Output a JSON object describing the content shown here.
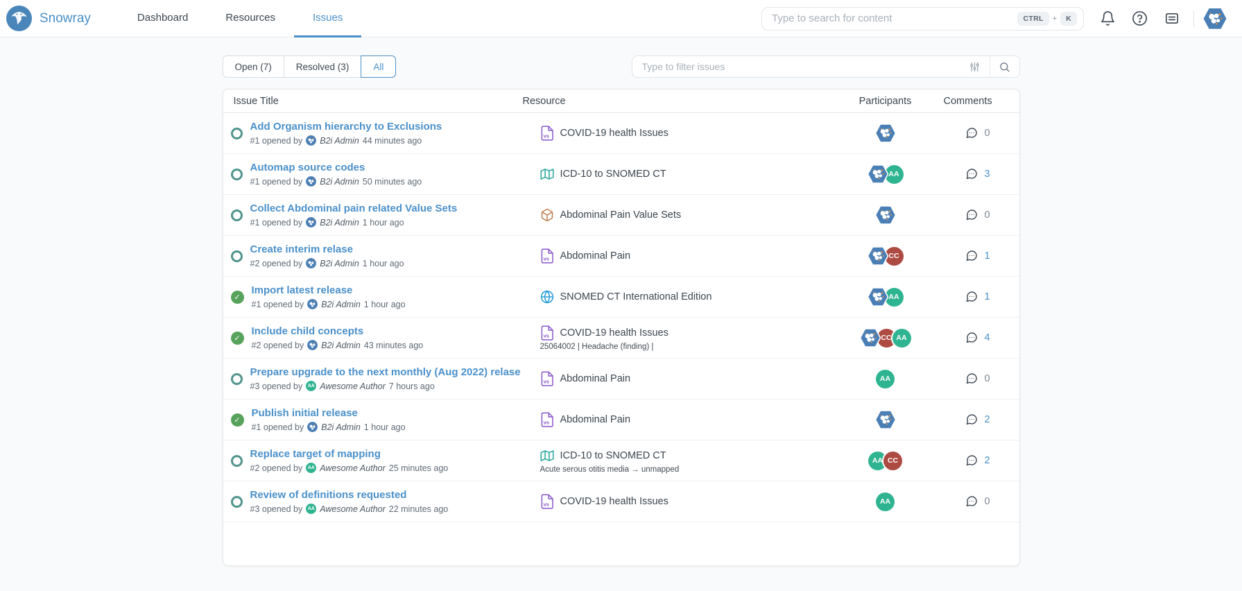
{
  "header": {
    "brand": "Snowray",
    "nav": [
      {
        "label": "Dashboard",
        "active": false
      },
      {
        "label": "Resources",
        "active": false
      },
      {
        "label": "Issues",
        "active": true
      }
    ],
    "search": {
      "placeholder": "Type to search for content",
      "shortcut": [
        "CTRL",
        "+",
        "K"
      ]
    },
    "icons": [
      "notifications-bell",
      "help",
      "whats-new",
      "user-avatar"
    ]
  },
  "toolbar": {
    "tabs": [
      {
        "label": "Open (7)",
        "active": false
      },
      {
        "label": "Resolved (3)",
        "active": false
      },
      {
        "label": "All",
        "active": true
      }
    ],
    "filter": {
      "placeholder": "Type to filter issues"
    }
  },
  "avatars": {
    "b2i": {
      "label": "B2i Admin",
      "color": "#4a7fb5",
      "shape": "hexagon-molecule"
    },
    "aa": {
      "initials": "AA",
      "label": "Awesome Author",
      "color": "#2fb491"
    },
    "cc": {
      "initials": "CC",
      "color": "#ad4a41"
    }
  },
  "table": {
    "columns": [
      "Issue Title",
      "Resource",
      "Participants",
      "Comments"
    ],
    "rows": [
      {
        "status": "open",
        "title": "Add Organism hierarchy to Exclusions",
        "meta_prefix": "#1 opened by",
        "author": "B2i Admin",
        "author_avatar": "b2i",
        "time": "44 minutes ago",
        "resource": {
          "icon": "value-set",
          "name": "COVID-19 health Issues",
          "subtitle": null
        },
        "participants": [
          "b2i"
        ],
        "comments": 0
      },
      {
        "status": "open",
        "title": "Automap source codes",
        "meta_prefix": "#1 opened by",
        "author": "B2i Admin",
        "author_avatar": "b2i",
        "time": "50 minutes ago",
        "resource": {
          "icon": "map",
          "name": "ICD-10 to SNOMED CT",
          "subtitle": null
        },
        "participants": [
          "b2i",
          "aa"
        ],
        "comments": 3
      },
      {
        "status": "open",
        "title": "Collect Abdominal pain related Value Sets",
        "meta_prefix": "#1 opened by",
        "author": "B2i Admin",
        "author_avatar": "b2i",
        "time": "1 hour ago",
        "resource": {
          "icon": "bundle",
          "name": "Abdominal Pain Value Sets",
          "subtitle": null
        },
        "participants": [
          "b2i"
        ],
        "comments": 0
      },
      {
        "status": "open",
        "title": "Create interim relase",
        "meta_prefix": "#2 opened by",
        "author": "B2i Admin",
        "author_avatar": "b2i",
        "time": "1 hour ago",
        "resource": {
          "icon": "value-set",
          "name": "Abdominal Pain",
          "subtitle": null
        },
        "participants": [
          "b2i",
          "cc"
        ],
        "comments": 1
      },
      {
        "status": "resolved",
        "title": "Import latest release",
        "meta_prefix": "#1 opened by",
        "author": "B2i Admin",
        "author_avatar": "b2i",
        "time": "1 hour ago",
        "resource": {
          "icon": "globe",
          "name": "SNOMED CT International Edition",
          "subtitle": null
        },
        "participants": [
          "b2i",
          "aa"
        ],
        "comments": 1
      },
      {
        "status": "resolved",
        "title": "Include child concepts",
        "meta_prefix": "#2 opened by",
        "author": "B2i Admin",
        "author_avatar": "b2i",
        "time": "43 minutes ago",
        "resource": {
          "icon": "value-set",
          "name": "COVID-19 health Issues",
          "subtitle": "25064002 | Headache (finding) |"
        },
        "participants": [
          "b2i",
          "cc",
          "aa"
        ],
        "comments": 4
      },
      {
        "status": "open",
        "title": "Prepare upgrade to the next monthly (Aug 2022) relase",
        "meta_prefix": "#3 opened by",
        "author": "Awesome Author",
        "author_avatar": "aa",
        "time": "7 hours ago",
        "resource": {
          "icon": "value-set",
          "name": "Abdominal Pain",
          "subtitle": null
        },
        "participants": [
          "aa"
        ],
        "comments": 0
      },
      {
        "status": "resolved",
        "title": "Publish initial release",
        "meta_prefix": "#1 opened by",
        "author": "B2i Admin",
        "author_avatar": "b2i",
        "time": "1 hour ago",
        "resource": {
          "icon": "value-set",
          "name": "Abdominal Pain",
          "subtitle": null
        },
        "participants": [
          "b2i"
        ],
        "comments": 2
      },
      {
        "status": "open",
        "title": "Replace target of mapping",
        "meta_prefix": "#2 opened by",
        "author": "Awesome Author",
        "author_avatar": "aa",
        "time": "25 minutes ago",
        "resource": {
          "icon": "map",
          "name": "ICD-10 to SNOMED CT",
          "subtitle": "Acute serous otitis media → unmapped"
        },
        "participants": [
          "aa",
          "cc"
        ],
        "comments": 2
      },
      {
        "status": "open",
        "title": "Review of definitions requested",
        "meta_prefix": "#3 opened by",
        "author": "Awesome Author",
        "author_avatar": "aa",
        "time": "22 minutes ago",
        "resource": {
          "icon": "value-set",
          "name": "COVID-19 health Issues",
          "subtitle": null
        },
        "participants": [
          "aa"
        ],
        "comments": 0
      }
    ]
  },
  "colors": {
    "accent_blue": "#4a90c9",
    "open_teal": "#4f948c",
    "resolved_green": "#57a35c",
    "value_set_purple": "#8856c9",
    "map_teal": "#2aa79b",
    "bundle_orange": "#bf7d4e",
    "globe_blue": "#2b9fd8"
  }
}
